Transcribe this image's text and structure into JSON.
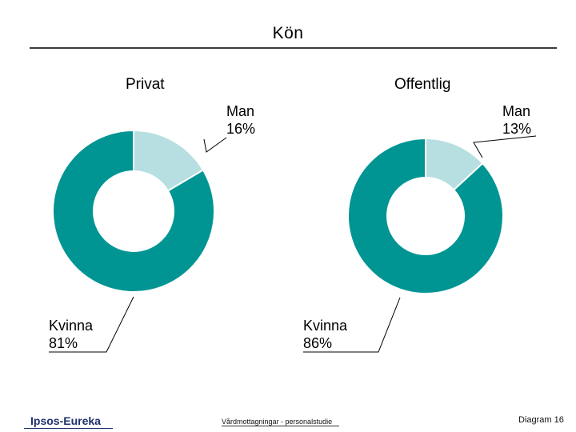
{
  "title": "Kön",
  "footer": {
    "logo": "Ipsos-Eureka",
    "center": "Vårdmottagningar - personalstudie",
    "right": "Diagram 16"
  },
  "colors": {
    "kvinna": "#009593",
    "man": "#b7dfe1",
    "rule": "#3a3a3a"
  },
  "chart_data": [
    {
      "type": "pie",
      "subtype": "donut",
      "title": "Privat",
      "slices": [
        {
          "label": "Man",
          "value": 16,
          "value_label": "16%"
        },
        {
          "label": "Kvinna",
          "value": 81,
          "value_label": "81%"
        }
      ]
    },
    {
      "type": "pie",
      "subtype": "donut",
      "title": "Offentlig",
      "slices": [
        {
          "label": "Man",
          "value": 13,
          "value_label": "13%"
        },
        {
          "label": "Kvinna",
          "value": 86,
          "value_label": "86%"
        }
      ]
    }
  ]
}
